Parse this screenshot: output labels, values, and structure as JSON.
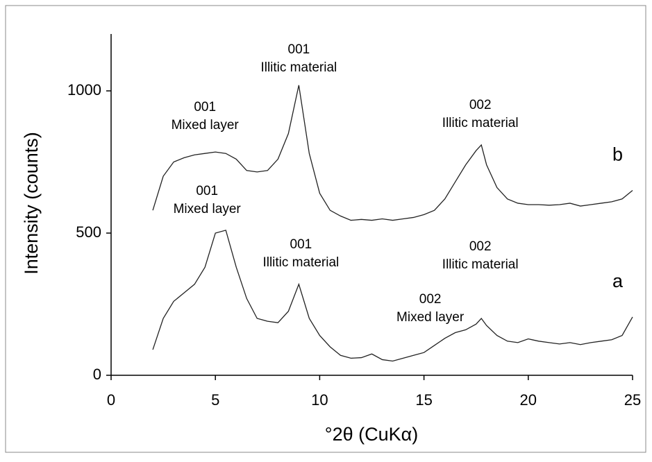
{
  "chart_data": {
    "type": "line",
    "x_label": "°2θ (CuKα)",
    "y_label": "Intensity (counts)",
    "xlim": [
      0,
      25
    ],
    "xticks": [
      0,
      5,
      10,
      15,
      20,
      25
    ],
    "ylim": [
      0,
      1200
    ],
    "yticks": [
      0,
      500,
      1000
    ],
    "x": [
      2,
      2.5,
      3,
      3.5,
      4,
      4.5,
      5,
      5.5,
      6,
      6.5,
      7,
      7.5,
      8,
      8.5,
      9,
      9.5,
      10,
      10.5,
      11,
      11.5,
      12,
      12.5,
      13,
      13.5,
      14,
      14.5,
      15,
      15.5,
      16,
      16.5,
      17,
      17.5,
      17.75,
      18,
      18.5,
      19,
      19.5,
      20,
      20.5,
      21,
      21.5,
      22,
      22.5,
      23,
      23.5,
      24,
      24.5,
      25
    ],
    "series": [
      {
        "name": "a",
        "color": "#222222",
        "values": [
          90,
          200,
          260,
          290,
          320,
          380,
          500,
          510,
          380,
          270,
          200,
          190,
          185,
          225,
          320,
          200,
          140,
          100,
          70,
          60,
          62,
          75,
          55,
          50,
          60,
          70,
          80,
          105,
          130,
          150,
          160,
          180,
          200,
          175,
          140,
          120,
          115,
          128,
          120,
          115,
          110,
          115,
          108,
          115,
          120,
          125,
          140,
          205
        ]
      },
      {
        "name": "b",
        "color": "#222222",
        "values": [
          580,
          700,
          750,
          765,
          775,
          780,
          785,
          780,
          760,
          720,
          715,
          720,
          760,
          850,
          1020,
          780,
          640,
          580,
          560,
          545,
          548,
          545,
          550,
          545,
          550,
          555,
          565,
          580,
          620,
          680,
          740,
          790,
          810,
          740,
          660,
          620,
          605,
          600,
          600,
          598,
          600,
          605,
          595,
          600,
          605,
          610,
          620,
          650
        ]
      }
    ],
    "annotations": [
      {
        "lines": [
          "001",
          "Mixed layer"
        ],
        "x": 4.5,
        "y": 941
      },
      {
        "lines": [
          "001",
          "Illitic material"
        ],
        "x": 9,
        "y": 1144
      },
      {
        "lines": [
          "002",
          "Illitic material"
        ],
        "x": 17.7,
        "y": 949
      },
      {
        "lines": [
          "001",
          "Mixed layer"
        ],
        "x": 4.6,
        "y": 646
      },
      {
        "lines": [
          "001",
          "Illitic material"
        ],
        "x": 9.1,
        "y": 459
      },
      {
        "lines": [
          "002",
          "Illitic material"
        ],
        "x": 17.7,
        "y": 451
      },
      {
        "lines": [
          "002",
          "Mixed layer"
        ],
        "x": 15.3,
        "y": 266
      }
    ]
  }
}
